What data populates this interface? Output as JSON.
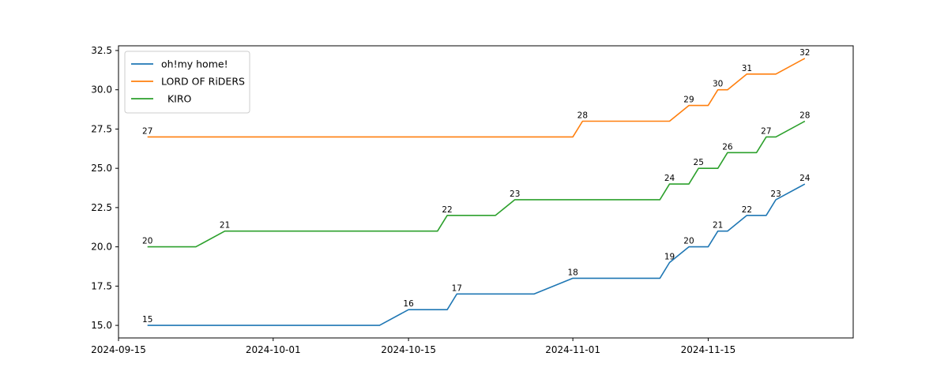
{
  "chart_data": {
    "type": "line",
    "title": "",
    "xlabel": "",
    "ylabel": "",
    "x_type": "date",
    "xlim": [
      "2024-09-15",
      "2024-11-30"
    ],
    "ylim": [
      14.2,
      32.8
    ],
    "x_ticks": [
      "2024-09-15",
      "2024-10-01",
      "2024-10-15",
      "2024-11-01",
      "2024-11-15"
    ],
    "y_ticks": [
      "15.0",
      "17.5",
      "20.0",
      "22.5",
      "25.0",
      "27.5",
      "30.0",
      "32.5"
    ],
    "grid": false,
    "legend": "upper-left",
    "series": [
      {
        "name": "oh!my home!",
        "color": "#1f77b4",
        "points": [
          {
            "x": "2024-09-18",
            "y": 15,
            "label": "15"
          },
          {
            "x": "2024-10-12",
            "y": 15
          },
          {
            "x": "2024-10-15",
            "y": 16,
            "label": "16"
          },
          {
            "x": "2024-10-19",
            "y": 16
          },
          {
            "x": "2024-10-20",
            "y": 17,
            "label": "17"
          },
          {
            "x": "2024-10-28",
            "y": 17
          },
          {
            "x": "2024-11-01",
            "y": 18,
            "label": "18"
          },
          {
            "x": "2024-11-10",
            "y": 18
          },
          {
            "x": "2024-11-11",
            "y": 19,
            "label": "19"
          },
          {
            "x": "2024-11-13",
            "y": 20,
            "label": "20"
          },
          {
            "x": "2024-11-15",
            "y": 20
          },
          {
            "x": "2024-11-16",
            "y": 21,
            "label": "21"
          },
          {
            "x": "2024-11-17",
            "y": 21
          },
          {
            "x": "2024-11-19",
            "y": 22,
            "label": "22"
          },
          {
            "x": "2024-11-21",
            "y": 22
          },
          {
            "x": "2024-11-22",
            "y": 23,
            "label": "23"
          },
          {
            "x": "2024-11-25",
            "y": 24,
            "label": "24"
          }
        ]
      },
      {
        "name": "LORD OF RiDERS",
        "color": "#ff7f0e",
        "points": [
          {
            "x": "2024-09-18",
            "y": 27,
            "label": "27"
          },
          {
            "x": "2024-11-01",
            "y": 27
          },
          {
            "x": "2024-11-02",
            "y": 28,
            "label": "28"
          },
          {
            "x": "2024-11-11",
            "y": 28
          },
          {
            "x": "2024-11-13",
            "y": 29,
            "label": "29"
          },
          {
            "x": "2024-11-15",
            "y": 29
          },
          {
            "x": "2024-11-16",
            "y": 30,
            "label": "30"
          },
          {
            "x": "2024-11-17",
            "y": 30
          },
          {
            "x": "2024-11-19",
            "y": 31,
            "label": "31"
          },
          {
            "x": "2024-11-22",
            "y": 31
          },
          {
            "x": "2024-11-25",
            "y": 32,
            "label": "32"
          }
        ]
      },
      {
        "name": "  KIRO ",
        "color": "#2ca02c",
        "points": [
          {
            "x": "2024-09-18",
            "y": 20,
            "label": "20"
          },
          {
            "x": "2024-09-23",
            "y": 20
          },
          {
            "x": "2024-09-26",
            "y": 21,
            "label": "21"
          },
          {
            "x": "2024-10-18",
            "y": 21
          },
          {
            "x": "2024-10-19",
            "y": 22,
            "label": "22"
          },
          {
            "x": "2024-10-24",
            "y": 22
          },
          {
            "x": "2024-10-26",
            "y": 23,
            "label": "23"
          },
          {
            "x": "2024-11-10",
            "y": 23
          },
          {
            "x": "2024-11-11",
            "y": 24,
            "label": "24"
          },
          {
            "x": "2024-11-13",
            "y": 24
          },
          {
            "x": "2024-11-14",
            "y": 25,
            "label": "25"
          },
          {
            "x": "2024-11-16",
            "y": 25
          },
          {
            "x": "2024-11-17",
            "y": 26,
            "label": "26"
          },
          {
            "x": "2024-11-20",
            "y": 26
          },
          {
            "x": "2024-11-21",
            "y": 27,
            "label": "27"
          },
          {
            "x": "2024-11-22",
            "y": 27
          },
          {
            "x": "2024-11-25",
            "y": 28,
            "label": "28"
          }
        ]
      }
    ]
  }
}
